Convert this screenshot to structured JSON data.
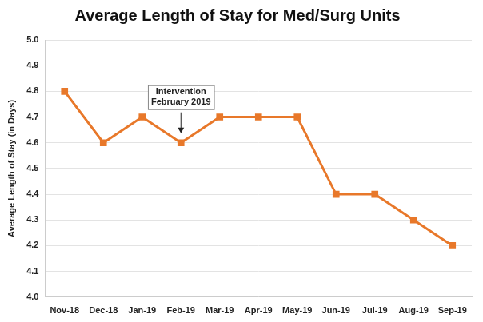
{
  "chart_data": {
    "type": "line",
    "title": "Average Length of Stay for Med/Surg Units",
    "y_label": "Average Length of Stay (in Days)",
    "categories": [
      "Nov-18",
      "Dec-18",
      "Jan-19",
      "Feb-19",
      "Mar-19",
      "Apr-19",
      "May-19",
      "Jun-19",
      "Jul-19",
      "Aug-19",
      "Sep-19"
    ],
    "values": [
      4.8,
      4.6,
      4.7,
      4.6,
      4.7,
      4.7,
      4.7,
      4.4,
      4.4,
      4.3,
      4.2
    ],
    "color": "#e8782a",
    "marker": "square",
    "line_style": "solid",
    "ylim": [
      4,
      5
    ],
    "yticks": [
      {
        "value": 4,
        "label": "4.0"
      },
      4.1,
      4.2,
      4.3,
      4.4,
      4.5,
      4.6,
      4.7,
      4.8,
      4.9,
      {
        "value": 5,
        "label": "5.0"
      }
    ],
    "grid": true,
    "annotations": [
      {
        "text": [
          "Intervention",
          "February 2019"
        ],
        "x": "Feb-19"
      }
    ]
  }
}
